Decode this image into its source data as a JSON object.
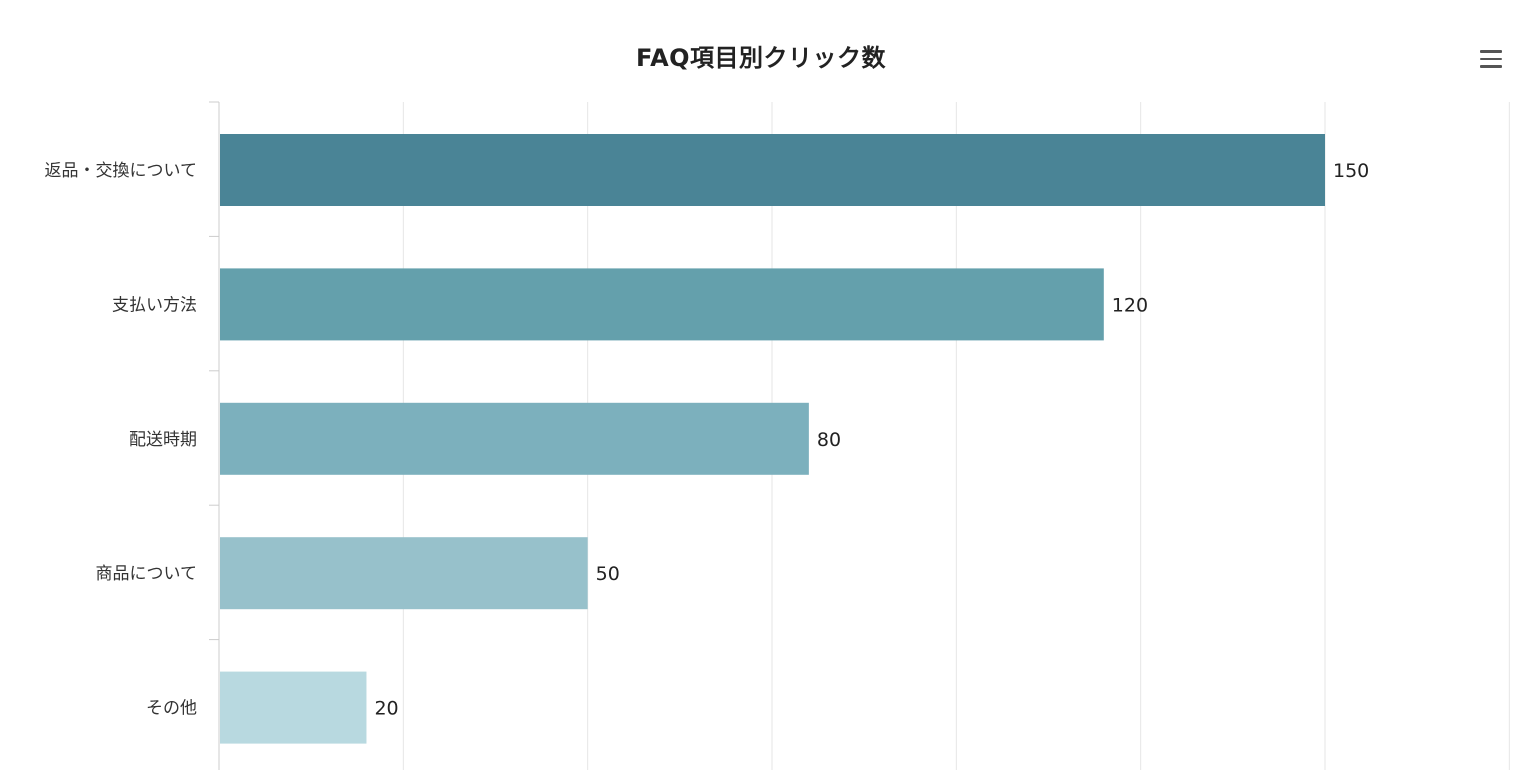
{
  "chart_data": {
    "type": "bar",
    "orientation": "horizontal",
    "title": "FAQ項目別クリック数",
    "categories": [
      "返品・交換について",
      "支払い方法",
      "配送時期",
      "商品について",
      "その他"
    ],
    "values": [
      150,
      120,
      80,
      50,
      20
    ],
    "xlabel": "",
    "ylabel": "",
    "xlim": [
      0,
      175
    ],
    "grid": true,
    "legend": "none",
    "data_labels": [
      "150",
      "120",
      "80",
      "50",
      "20"
    ],
    "colors": [
      "#4a8496",
      "#64a0ac",
      "#7cb0bd",
      "#97c1cb",
      "#b8d9e0"
    ]
  },
  "menu": {
    "icon": "hamburger-menu-icon"
  }
}
